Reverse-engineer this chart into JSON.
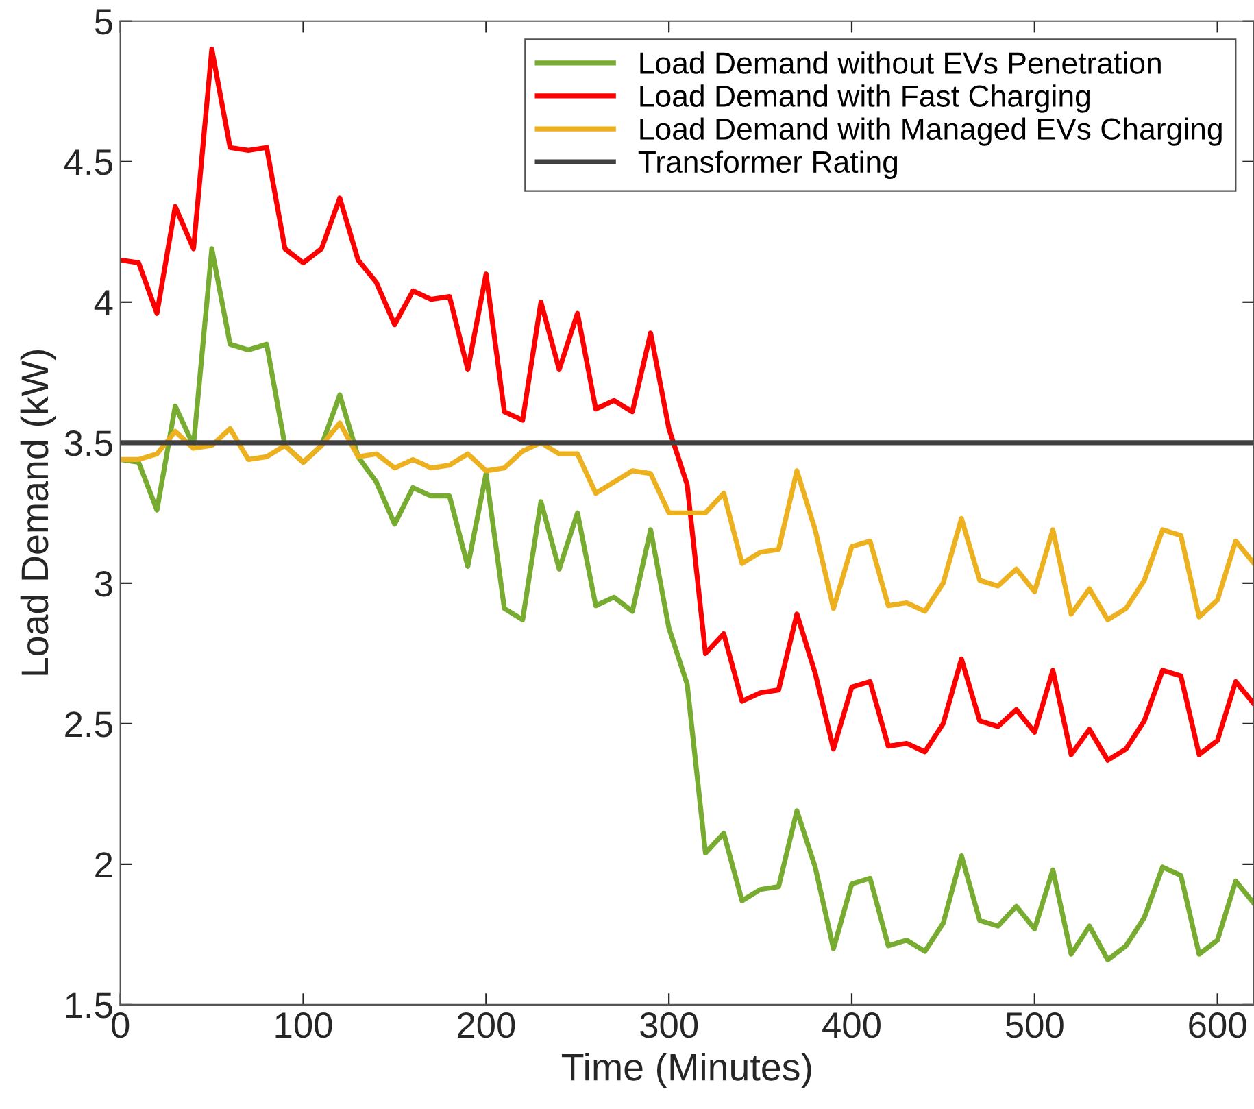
{
  "chart_data": {
    "type": "line",
    "xlabel": "Time (Minutes)",
    "ylabel": "Load Demand (kW)",
    "x": [
      0,
      10,
      20,
      30,
      40,
      50,
      60,
      70,
      80,
      90,
      100,
      110,
      120,
      130,
      140,
      150,
      160,
      170,
      180,
      190,
      200,
      210,
      220,
      230,
      240,
      250,
      260,
      270,
      280,
      290,
      300,
      310,
      320,
      330,
      340,
      350,
      360,
      370,
      380,
      390,
      400,
      410,
      420,
      430,
      440,
      450,
      460,
      470,
      480,
      490,
      500,
      510,
      520,
      530,
      540,
      550,
      560,
      570,
      580,
      590,
      600,
      610,
      620
    ],
    "series": [
      {
        "name": "Load Demand without EVs Penetration",
        "color": "#77ac30",
        "values": [
          3.44,
          3.43,
          3.26,
          3.63,
          3.49,
          4.19,
          3.85,
          3.83,
          3.85,
          3.49,
          3.43,
          3.49,
          3.67,
          3.45,
          3.36,
          3.21,
          3.34,
          3.31,
          3.31,
          3.06,
          3.39,
          2.91,
          2.87,
          3.29,
          3.05,
          3.25,
          2.92,
          2.95,
          2.9,
          3.19,
          2.84,
          2.64,
          2.04,
          2.11,
          1.87,
          1.91,
          1.92,
          2.19,
          1.99,
          1.7,
          1.93,
          1.95,
          1.71,
          1.73,
          1.69,
          1.79,
          2.03,
          1.8,
          1.78,
          1.85,
          1.77,
          1.98,
          1.68,
          1.78,
          1.66,
          1.71,
          1.81,
          1.99,
          1.96,
          1.68,
          1.73,
          1.94,
          1.86
        ]
      },
      {
        "name": "Load Demand with Fast Charging",
        "color": "#ff0000",
        "values": [
          4.15,
          4.14,
          3.96,
          4.34,
          4.19,
          4.9,
          4.55,
          4.54,
          4.55,
          4.19,
          4.14,
          4.19,
          4.37,
          4.15,
          4.07,
          3.92,
          4.04,
          4.01,
          4.02,
          3.76,
          4.1,
          3.61,
          3.58,
          4.0,
          3.76,
          3.96,
          3.62,
          3.65,
          3.61,
          3.89,
          3.55,
          3.35,
          2.75,
          2.82,
          2.58,
          2.61,
          2.62,
          2.89,
          2.68,
          2.41,
          2.63,
          2.65,
          2.42,
          2.43,
          2.4,
          2.5,
          2.73,
          2.51,
          2.49,
          2.55,
          2.47,
          2.69,
          2.39,
          2.48,
          2.37,
          2.41,
          2.51,
          2.69,
          2.67,
          2.39,
          2.44,
          2.65,
          2.57
        ]
      },
      {
        "name": "Load Demand with Managed EVs Charging",
        "color": "#edb120",
        "values": [
          3.44,
          3.44,
          3.46,
          3.54,
          3.48,
          3.49,
          3.55,
          3.44,
          3.45,
          3.49,
          3.43,
          3.49,
          3.57,
          3.45,
          3.46,
          3.41,
          3.44,
          3.41,
          3.42,
          3.46,
          3.4,
          3.41,
          3.47,
          3.5,
          3.46,
          3.46,
          3.32,
          3.36,
          3.4,
          3.39,
          3.25,
          3.25,
          3.25,
          3.32,
          3.07,
          3.11,
          3.12,
          3.4,
          3.19,
          2.91,
          3.13,
          3.15,
          2.92,
          2.93,
          2.9,
          3.0,
          3.23,
          3.01,
          2.99,
          3.05,
          2.97,
          3.19,
          2.89,
          2.98,
          2.87,
          2.91,
          3.01,
          3.19,
          3.17,
          2.88,
          2.94,
          3.15,
          3.07
        ]
      },
      {
        "name": "Transformer Rating",
        "color": "#404040",
        "x": [
          0,
          620
        ],
        "values": [
          3.5,
          3.5
        ]
      }
    ],
    "xlim": [
      0,
      620
    ],
    "xticks": [
      0,
      100,
      200,
      300,
      400,
      500,
      600
    ],
    "ylim": [
      1.5,
      5
    ],
    "yticks": [
      1.5,
      2,
      2.5,
      3,
      3.5,
      4,
      4.5,
      5
    ],
    "grid": false,
    "legend": "top right",
    "marker": "none",
    "line_style": "solid"
  }
}
